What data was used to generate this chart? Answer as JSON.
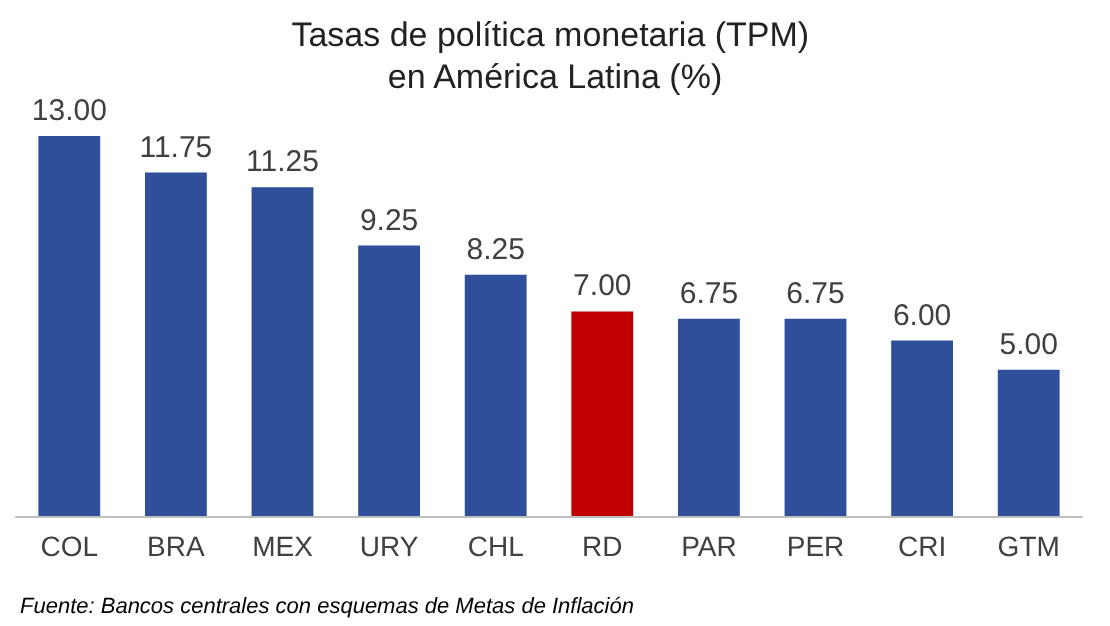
{
  "chart_data": {
    "type": "bar",
    "title": "Tasas de política monetaria (TPM) en América Latina (%)",
    "categories": [
      "COL",
      "BRA",
      "MEX",
      "URY",
      "CHL",
      "RD",
      "PAR",
      "PER",
      "CRI",
      "GTM"
    ],
    "values": [
      13.0,
      11.75,
      11.25,
      9.25,
      8.25,
      7.0,
      6.75,
      6.75,
      6.0,
      5.0
    ],
    "colors": [
      "#2f4f9a",
      "#2f4f9a",
      "#2f4f9a",
      "#2f4f9a",
      "#2f4f9a",
      "#c00000",
      "#2f4f9a",
      "#2f4f9a",
      "#2f4f9a",
      "#2f4f9a"
    ],
    "value_labels": [
      "13.00",
      "11.75",
      "11.25",
      "9.25",
      "8.25",
      "7.00",
      "6.75",
      "6.75",
      "6.00",
      "5.00"
    ],
    "annotations": [
      "Fuente: Bancos centrales con esquemas de Metas de Inflación"
    ]
  }
}
